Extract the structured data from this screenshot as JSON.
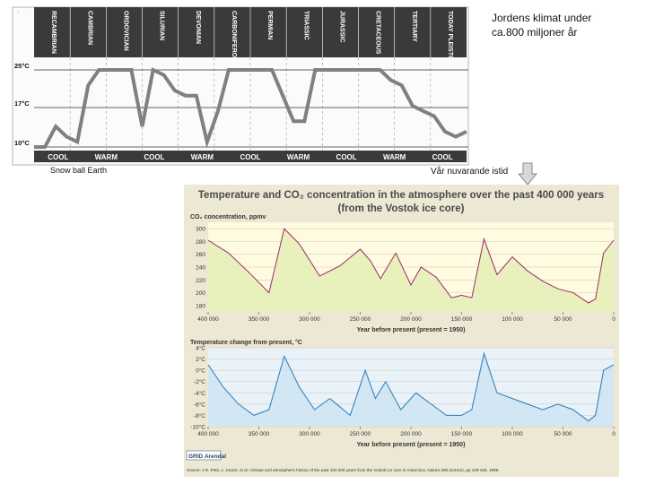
{
  "slide": {
    "title_line1": "Jordens klimat under",
    "title_line2": "ca.800 miljoner år",
    "snowball_caption": "Snow ball Earth",
    "present_caption": "Vår nuvarande istid"
  },
  "colors": {
    "geo_bg": "#ffffff",
    "geo_band": "#3a3a3a",
    "geo_curve": "#808080",
    "vostok_bg": "#ece8d4",
    "co2_line": "#9b2b6a",
    "co2_fill": "#e6f0b8",
    "temp_line": "#2a7ab8",
    "temp_fill": "#cfe4f2",
    "title_color": "#4a4a4a",
    "arrow": "#b0b0b0"
  },
  "chart_data": [
    {
      "type": "line",
      "title": "",
      "periods": [
        "RECAMBRIAN",
        "CAMBRIAN",
        "ORDOVICIAN",
        "SILURIAN",
        "DEVONIAN",
        "CARBONIFEROUS",
        "PERMIAN",
        "TRIASSIC",
        "JURASSIC",
        "CRETACEOUS",
        "TERTIARY",
        "TODAY PLEISTOCENE"
      ],
      "yticks": [
        "25°C",
        "17°C",
        "10°C"
      ],
      "climate_bands": [
        "COOL",
        "WARM",
        "COOL",
        "WARM",
        "COOL",
        "WARM",
        "COOL",
        "WARM",
        "COOL"
      ],
      "series": [
        {
          "values": [
            10,
            10,
            14,
            12,
            11,
            22,
            25,
            25,
            25,
            25,
            14,
            25,
            24,
            21,
            20,
            20,
            11,
            17,
            25,
            25,
            25,
            25,
            25,
            20,
            15,
            15,
            25,
            25,
            25,
            25,
            25,
            25,
            25,
            23,
            22,
            18,
            17,
            16,
            13,
            12,
            13
          ]
        }
      ],
      "ylim": [
        10,
        25
      ]
    },
    {
      "type": "line",
      "title": "Temperature and CO₂ concentration in the atmosphere over the past 400 000 years",
      "subtitle": "(from the Vostok ice core)",
      "ylabel": "CO₂ concentration, ppmv",
      "xlabel": "Year before present (present = 1950)",
      "x_ticks": [
        "400 000",
        "350 000",
        "300 000",
        "250 000",
        "200 000",
        "150 000",
        "100 000",
        "50 000",
        "0"
      ],
      "y_ticks": [
        "300",
        "280",
        "260",
        "240",
        "220",
        "200",
        "180"
      ],
      "ylim": [
        170,
        310
      ],
      "x": [
        400000,
        380000,
        360000,
        340000,
        325000,
        310000,
        290000,
        270000,
        250000,
        240000,
        230000,
        215000,
        200000,
        190000,
        175000,
        160000,
        150000,
        140000,
        128000,
        115000,
        100000,
        85000,
        70000,
        55000,
        40000,
        25000,
        18000,
        10000,
        0
      ],
      "series": [
        {
          "values": [
            282,
            262,
            232,
            200,
            300,
            276,
            226,
            242,
            268,
            250,
            222,
            262,
            212,
            240,
            224,
            192,
            196,
            192,
            284,
            228,
            256,
            234,
            218,
            206,
            200,
            184,
            190,
            262,
            282
          ]
        }
      ]
    },
    {
      "type": "line",
      "title": "Temperature change from present, °C",
      "xlabel": "Year before present (present = 1950)",
      "x_ticks": [
        "400 000",
        "350 000",
        "300 000",
        "250 000",
        "200 000",
        "150 000",
        "100 000",
        "50 000",
        "0"
      ],
      "y_ticks": [
        "4°C",
        "2°C",
        "0°C",
        "-2°C",
        "-4°C",
        "-6°C",
        "-8°C",
        "-10°C"
      ],
      "ylim": [
        -10,
        4
      ],
      "x": [
        400000,
        385000,
        370000,
        355000,
        340000,
        325000,
        310000,
        295000,
        280000,
        260000,
        245000,
        235000,
        225000,
        210000,
        195000,
        180000,
        165000,
        150000,
        140000,
        128000,
        115000,
        100000,
        85000,
        70000,
        55000,
        40000,
        25000,
        18000,
        10000,
        0
      ],
      "series": [
        {
          "values": [
            1,
            -3,
            -6,
            -8,
            -7,
            2.5,
            -3,
            -7,
            -5,
            -8,
            0,
            -5,
            -2,
            -7,
            -4,
            -6,
            -8,
            -8,
            -7,
            3,
            -4,
            -5,
            -6,
            -7,
            -6,
            -7,
            -9,
            -8,
            0,
            1
          ]
        }
      ]
    }
  ],
  "source": "Source: J.R. Petit, J. Jouzel, et al. Climate and atmospheric history of the past 420 000 years from the Vostok ice core in Antarctica, Nature 399 (3JUne), pp 429-436, 1999.",
  "grid_logo": "GRID Arendal"
}
